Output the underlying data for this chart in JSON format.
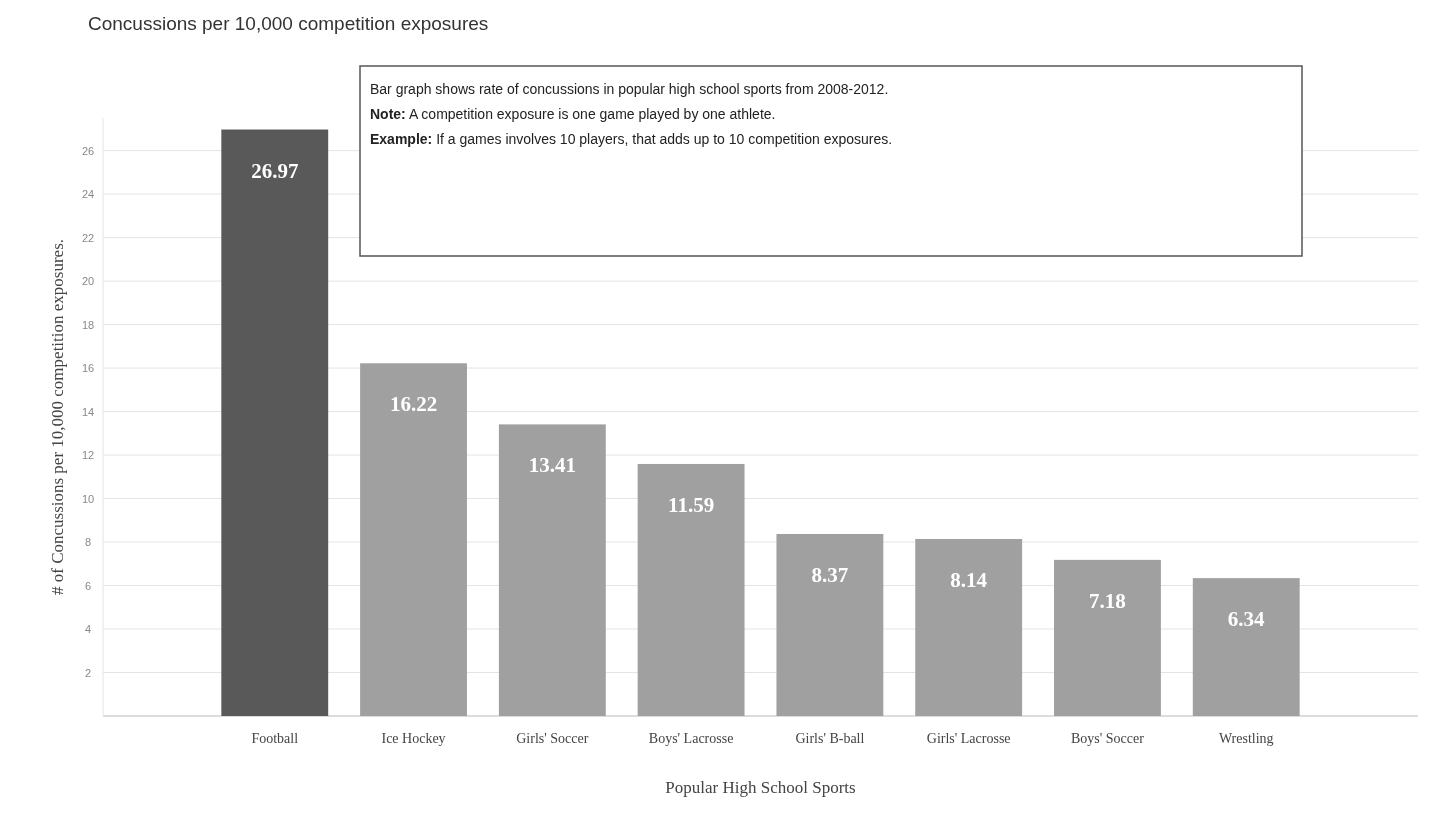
{
  "chart_data": {
    "type": "bar",
    "title": "Concussions per 10,000 competition exposures",
    "xlabel": "Popular High School Sports",
    "ylabel": "# of Concussions per 10,000 competition exposures.",
    "categories": [
      "Football",
      "Ice Hockey",
      "Girls' Soccer",
      "Boys' Lacrosse",
      "Girls' B-ball",
      "Girls' Lacrosse",
      "Boys' Soccer",
      "Wrestling"
    ],
    "values": [
      26.97,
      16.22,
      13.41,
      11.59,
      8.37,
      8.14,
      7.18,
      6.34
    ],
    "colors": [
      "#595959",
      "#a0a0a0",
      "#a0a0a0",
      "#a0a0a0",
      "#a0a0a0",
      "#a0a0a0",
      "#a0a0a0",
      "#a0a0a0"
    ],
    "ylim": [
      0,
      27.5
    ],
    "yticks": [
      2,
      4,
      6,
      8,
      10,
      12,
      14,
      16,
      18,
      20,
      22,
      24,
      26
    ],
    "grid": "y",
    "data_labels": true,
    "annotations": [
      "Bar graph shows rate of concussions in popular high school sports from 2008-2012.",
      "Note: A competition exposure is one game played by one athlete.",
      "Example: If a games involves 10 players, that adds up to 10 competition exposures."
    ]
  }
}
